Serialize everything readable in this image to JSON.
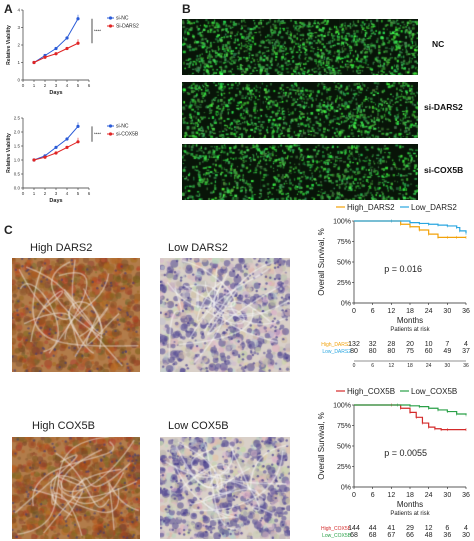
{
  "panels": {
    "A": "A",
    "B": "B",
    "C": "C"
  },
  "colors": {
    "blue": "#2a5bd7",
    "red": "#e02424",
    "orange": "#f2a20a",
    "skyblue": "#2aa6e0",
    "darkred": "#d42a2a",
    "green": "#2aa048"
  },
  "viability_dars2": {
    "ylabel": "Relative Viability",
    "xlabel": "Days",
    "legend": [
      "si-NC",
      "Si-DARS2"
    ],
    "sig": "****",
    "yticks": [
      "0",
      "1",
      "2",
      "3",
      "4"
    ],
    "xticks": [
      "0",
      "1",
      "2",
      "3",
      "4",
      "5",
      "6"
    ]
  },
  "viability_cox5b": {
    "ylabel": "Relative Viability",
    "xlabel": "Days",
    "legend": [
      "si-NC",
      "si-COX5B"
    ],
    "sig": "****",
    "yticks": [
      "0.0",
      "0.5",
      "1.0",
      "1.5",
      "2.0",
      "2.5"
    ],
    "xticks": [
      "0",
      "1",
      "2",
      "3",
      "4",
      "5",
      "6"
    ]
  },
  "fluorescence": {
    "rows": [
      "NC",
      "si-DARS2",
      "si-COX5B"
    ]
  },
  "ihc": {
    "dars2": [
      "High DARS2",
      "Low DARS2"
    ],
    "cox5b": [
      "High COX5B",
      "Low COX5B"
    ]
  },
  "survival_dars2": {
    "legend": [
      "High_DARS2",
      "Low_DARS2"
    ],
    "ylabel": "Overall Survival, %",
    "xlabel": "Months",
    "yticks": [
      "100%",
      "75%",
      "50%",
      "25%",
      "0%"
    ],
    "xticks": [
      "0",
      "6",
      "12",
      "18",
      "24",
      "30",
      "36"
    ],
    "pvalue": "p = 0.016",
    "risk_title": "Patients at risk",
    "risk_rows": [
      {
        "label": "High_DARS2",
        "values": [
          "132",
          "32",
          "28",
          "20",
          "10",
          "7",
          "4"
        ]
      },
      {
        "label": "Low_DARS2",
        "values": [
          "80",
          "80",
          "80",
          "75",
          "60",
          "49",
          "37"
        ]
      }
    ]
  },
  "survival_cox5b": {
    "legend": [
      "High_COX5B",
      "Low_COX5B"
    ],
    "ylabel": "Overall Survival, %",
    "xlabel": "Months",
    "yticks": [
      "100%",
      "75%",
      "50%",
      "25%",
      "0%"
    ],
    "xticks": [
      "0",
      "6",
      "12",
      "18",
      "24",
      "30",
      "36"
    ],
    "pvalue": "p = 0.0055",
    "risk_title": "Patients at risk",
    "risk_rows": [
      {
        "label": "High_COX5B",
        "values": [
          "144",
          "44",
          "41",
          "29",
          "12",
          "6",
          "4"
        ]
      },
      {
        "label": "Low_COX5B",
        "values": [
          "68",
          "68",
          "67",
          "66",
          "48",
          "36",
          "30"
        ]
      }
    ]
  },
  "chart_data": [
    {
      "type": "line",
      "xlabel": "Days",
      "ylabel": "Relative Viability",
      "x": [
        1,
        2,
        3,
        4,
        5
      ],
      "series": [
        {
          "name": "si-NC",
          "values": [
            1.0,
            1.4,
            1.8,
            2.4,
            3.5
          ]
        },
        {
          "name": "Si-DARS2",
          "values": [
            1.0,
            1.3,
            1.5,
            1.8,
            2.1
          ]
        }
      ],
      "xlim": [
        0,
        6
      ],
      "ylim": [
        0,
        4
      ]
    },
    {
      "type": "line",
      "xlabel": "Days",
      "ylabel": "Relative Viability",
      "x": [
        1,
        2,
        3,
        4,
        5
      ],
      "series": [
        {
          "name": "si-NC",
          "values": [
            1.0,
            1.15,
            1.45,
            1.75,
            2.2
          ]
        },
        {
          "name": "si-COX5B",
          "values": [
            1.0,
            1.1,
            1.25,
            1.45,
            1.65
          ]
        }
      ],
      "xlim": [
        0,
        6
      ],
      "ylim": [
        0,
        2.5
      ]
    },
    {
      "type": "line",
      "xlabel": "Months",
      "ylabel": "Overall Survival, %",
      "series": [
        {
          "name": "High_DARS2",
          "x": [
            0,
            12,
            15,
            18,
            21,
            24,
            27,
            30,
            33,
            36
          ],
          "values": [
            100,
            100,
            96,
            93,
            89,
            84,
            80,
            80,
            80,
            80
          ]
        },
        {
          "name": "Low_DARS2",
          "x": [
            0,
            12,
            18,
            21,
            24,
            27,
            30,
            33,
            34,
            36
          ],
          "values": [
            100,
            100,
            98,
            97,
            96,
            95,
            94,
            92,
            88,
            85
          ]
        }
      ],
      "xlim": [
        0,
        36
      ],
      "ylim": [
        0,
        100
      ]
    },
    {
      "type": "line",
      "xlabel": "Months",
      "ylabel": "Overall Survival, %",
      "series": [
        {
          "name": "High_COX5B",
          "x": [
            0,
            12,
            15,
            18,
            20,
            22,
            24,
            26,
            28,
            30,
            36
          ],
          "values": [
            100,
            100,
            96,
            91,
            85,
            78,
            73,
            71,
            70,
            70,
            70
          ]
        },
        {
          "name": "Low_COX5B",
          "x": [
            0,
            14,
            18,
            21,
            24,
            27,
            30,
            33,
            36
          ],
          "values": [
            100,
            100,
            99,
            98,
            96,
            94,
            92,
            89,
            88
          ]
        }
      ],
      "xlim": [
        0,
        36
      ],
      "ylim": [
        0,
        100
      ]
    }
  ]
}
